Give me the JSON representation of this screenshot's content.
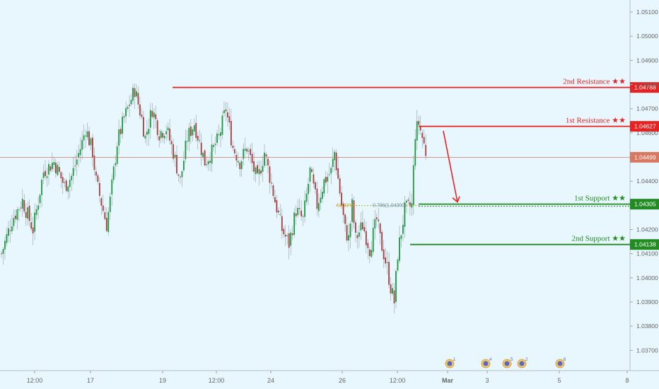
{
  "chart_data": {
    "type": "candlestick",
    "title": "",
    "xlabel": "",
    "ylabel": "",
    "ylim": [
      1.03616,
      1.0515
    ],
    "y_ticks": [
      "1.05100",
      "1.05000",
      "1.04900",
      "1.04800",
      "1.04700",
      "1.04600",
      "1.04400",
      "1.04200",
      "1.04100",
      "1.04000",
      "1.03900",
      "1.03800",
      "1.03700"
    ],
    "x_ticks": [
      "12:00",
      "17",
      "19",
      "12:00",
      "24",
      "26",
      "12:00",
      "Mar",
      "3",
      "5",
      "8"
    ],
    "current_price": "1.04499",
    "levels": [
      {
        "name": "2nd Resistance ★★",
        "value": 1.04788,
        "tag": "1.04788",
        "color": "#e62222"
      },
      {
        "name": "1st Resistance ★★",
        "value": 1.04627,
        "tag": "1.04627",
        "color": "#e62222"
      },
      {
        "name": "1st Support ★★",
        "value": 1.04305,
        "tag": "1.04305",
        "color": "#228b22"
      },
      {
        "name": "2nd Support ★★",
        "value": 1.04138,
        "tag": "1.04138",
        "color": "#228b22"
      }
    ],
    "fib_labels": {
      "left": "61.80%",
      "right": "0.786(1.04300)"
    },
    "forecast_arrow": {
      "from": 1.0462,
      "to": 1.04305
    },
    "series_anchors": [
      [
        0,
        1.041
      ],
      [
        6,
        1.0424
      ],
      [
        12,
        1.0432
      ],
      [
        18,
        1.042
      ],
      [
        24,
        1.0444
      ],
      [
        30,
        1.0448
      ],
      [
        36,
        1.0438
      ],
      [
        40,
        1.0442
      ],
      [
        46,
        1.0456
      ],
      [
        48,
        1.0462
      ],
      [
        52,
        1.0452
      ],
      [
        54,
        1.044
      ],
      [
        58,
        1.0428
      ],
      [
        60,
        1.0422
      ],
      [
        62,
        1.0432
      ],
      [
        66,
        1.0456
      ],
      [
        70,
        1.0466
      ],
      [
        74,
        1.0474
      ],
      [
        76,
        1.0478
      ],
      [
        80,
        1.0466
      ],
      [
        82,
        1.0458
      ],
      [
        86,
        1.047
      ],
      [
        90,
        1.046
      ],
      [
        94,
        1.0462
      ],
      [
        98,
        1.0452
      ],
      [
        102,
        1.044
      ],
      [
        106,
        1.0458
      ],
      [
        110,
        1.0464
      ],
      [
        116,
        1.0448
      ],
      [
        120,
        1.0452
      ],
      [
        124,
        1.0458
      ],
      [
        128,
        1.047
      ],
      [
        132,
        1.0454
      ],
      [
        136,
        1.0448
      ],
      [
        140,
        1.0454
      ],
      [
        146,
        1.044
      ],
      [
        150,
        1.0452
      ],
      [
        156,
        1.0432
      ],
      [
        160,
        1.042
      ],
      [
        164,
        1.0414
      ],
      [
        168,
        1.0428
      ],
      [
        172,
        1.0424
      ],
      [
        176,
        1.0444
      ],
      [
        180,
        1.043
      ],
      [
        184,
        1.044
      ],
      [
        188,
        1.0444
      ],
      [
        190,
        1.0452
      ],
      [
        194,
        1.043
      ],
      [
        196,
        1.042
      ],
      [
        198,
        1.0416
      ],
      [
        200,
        1.043
      ],
      [
        202,
        1.0416
      ],
      [
        206,
        1.0422
      ],
      [
        210,
        1.0412
      ],
      [
        214,
        1.0424
      ],
      [
        216,
        1.0416
      ],
      [
        220,
        1.0404
      ],
      [
        222,
        1.0396
      ],
      [
        224,
        1.039
      ],
      [
        226,
        1.041
      ],
      [
        230,
        1.0428
      ],
      [
        234,
        1.043
      ],
      [
        236,
        1.046
      ],
      [
        238,
        1.0464
      ],
      [
        240,
        1.0458
      ],
      [
        242,
        1.0452
      ]
    ],
    "events": [
      {
        "label": "1"
      },
      {
        "label": "4"
      },
      {
        "label": "5"
      },
      {
        "label": "2"
      },
      {
        "label": "6"
      },
      {
        "label": "3"
      }
    ]
  },
  "colors": {
    "background": "#e8f6fd",
    "up": "#1a9a3c",
    "down": "#a63c3c",
    "wick": "#8fa2a8",
    "resistance": "#e62222",
    "support": "#228b22",
    "price_line": "#c9776a",
    "price_tag": "#d97860",
    "event_icon": "#5a67c9"
  }
}
